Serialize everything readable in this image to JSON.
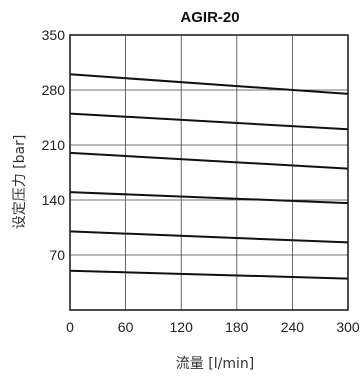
{
  "chart_data": {
    "type": "line",
    "title": "AGIR-20",
    "xlabel": "流量  [l/min]",
    "ylabel": "设定压力  [bar]",
    "xlim": [
      0,
      300
    ],
    "ylim": [
      0,
      350
    ],
    "xticks": [
      0,
      60,
      120,
      180,
      240,
      300
    ],
    "yticks": [
      70,
      140,
      210,
      280,
      350
    ],
    "grid": true,
    "series": [
      {
        "x": [
          0,
          300
        ],
        "y": [
          300,
          275
        ]
      },
      {
        "x": [
          0,
          300
        ],
        "y": [
          250,
          230
        ]
      },
      {
        "x": [
          0,
          300
        ],
        "y": [
          200,
          180
        ]
      },
      {
        "x": [
          0,
          300
        ],
        "y": [
          150,
          136
        ]
      },
      {
        "x": [
          0,
          300
        ],
        "y": [
          100,
          86
        ]
      },
      {
        "x": [
          0,
          300
        ],
        "y": [
          50,
          40
        ]
      }
    ]
  }
}
